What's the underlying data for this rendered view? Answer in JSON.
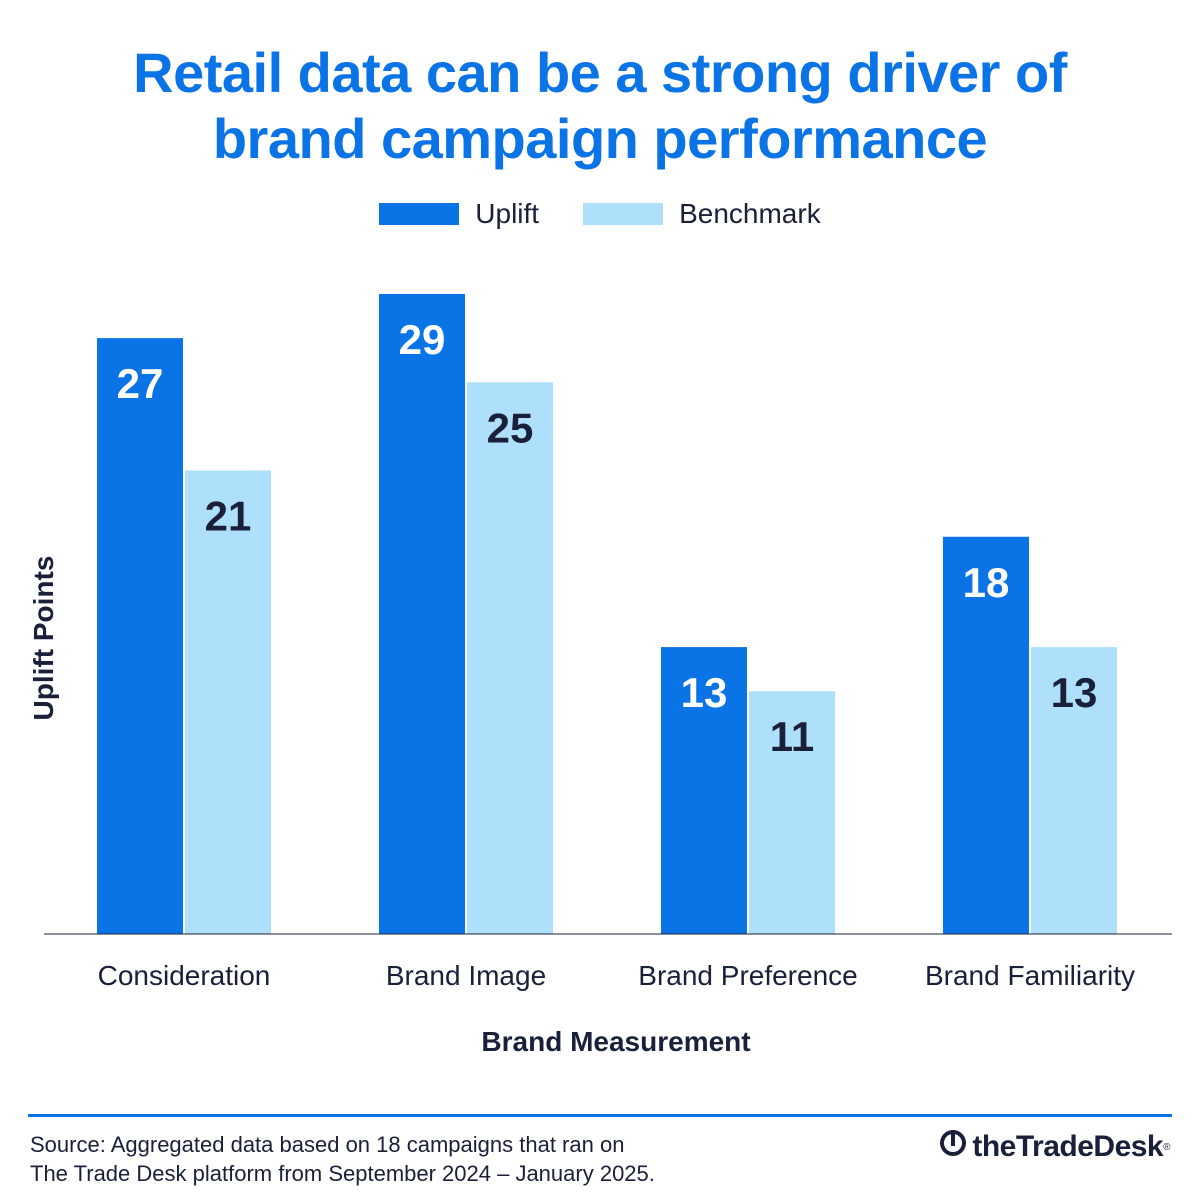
{
  "chart_data": {
    "type": "bar",
    "title_lines": [
      "Retail data can be a strong driver of",
      "brand campaign performance"
    ],
    "categories": [
      "Consideration",
      "Brand Image",
      "Brand Preference",
      "Brand Familiarity"
    ],
    "series": [
      {
        "name": "Uplift",
        "values": [
          27,
          29,
          13,
          18
        ],
        "color": "#0a73e6",
        "label_color": "#ffffff"
      },
      {
        "name": "Benchmark",
        "values": [
          21,
          25,
          11,
          13
        ],
        "color": "#aee0fb",
        "label_color": "#1a1f3a"
      }
    ],
    "xlabel": "Brand Measurement",
    "ylabel": "Uplift Points",
    "ylim": [
      0,
      29
    ],
    "grid": false,
    "legend_position": "top-center"
  },
  "footer": {
    "source_lines": [
      "Source: Aggregated data based on 18 campaigns that ran on",
      "The Trade Desk platform from September 2024 – January 2025."
    ],
    "logo_text": "theTradeDesk",
    "logo_mark": "registered"
  },
  "colors": {
    "accent": "#0a73e6",
    "light": "#aee0fb",
    "text": "#1a1f3a"
  },
  "icons": {
    "logo": "trade-desk-logo-icon"
  }
}
